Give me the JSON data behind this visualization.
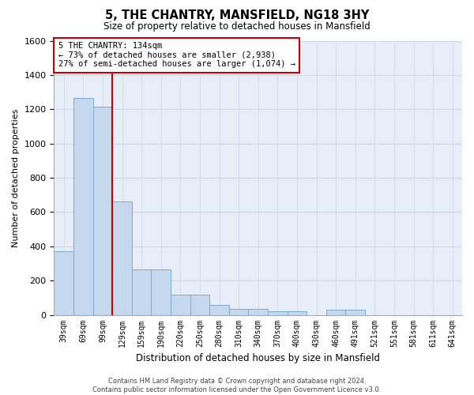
{
  "title": "5, THE CHANTRY, MANSFIELD, NG18 3HY",
  "subtitle": "Size of property relative to detached houses in Mansfield",
  "xlabel": "Distribution of detached houses by size in Mansfield",
  "ylabel": "Number of detached properties",
  "footer_line1": "Contains HM Land Registry data © Crown copyright and database right 2024.",
  "footer_line2": "Contains public sector information licensed under the Open Government Licence v3.0.",
  "annotation_title": "5 THE CHANTRY: 134sqm",
  "annotation_line2": "← 73% of detached houses are smaller (2,938)",
  "annotation_line3": "27% of semi-detached houses are larger (1,074) →",
  "bar_labels": [
    "39sqm",
    "69sqm",
    "99sqm",
    "129sqm",
    "159sqm",
    "190sqm",
    "220sqm",
    "250sqm",
    "280sqm",
    "310sqm",
    "340sqm",
    "370sqm",
    "400sqm",
    "430sqm",
    "460sqm",
    "491sqm",
    "521sqm",
    "551sqm",
    "581sqm",
    "611sqm",
    "641sqm"
  ],
  "bar_values": [
    370,
    1265,
    1215,
    660,
    265,
    265,
    120,
    120,
    60,
    35,
    35,
    20,
    20,
    0,
    30,
    30,
    0,
    0,
    0,
    0,
    0
  ],
  "bar_color": "#c5d8ee",
  "bar_edge_color": "#7bacd4",
  "vline_color": "#cc0000",
  "vline_index": 3,
  "ylim": [
    0,
    1600
  ],
  "yticks": [
    0,
    200,
    400,
    600,
    800,
    1000,
    1200,
    1400,
    1600
  ],
  "annotation_box_color": "#ffffff",
  "annotation_box_edge": "#cc0000",
  "grid_color": "#cdd8ea",
  "bg_color": "#e8eef8"
}
